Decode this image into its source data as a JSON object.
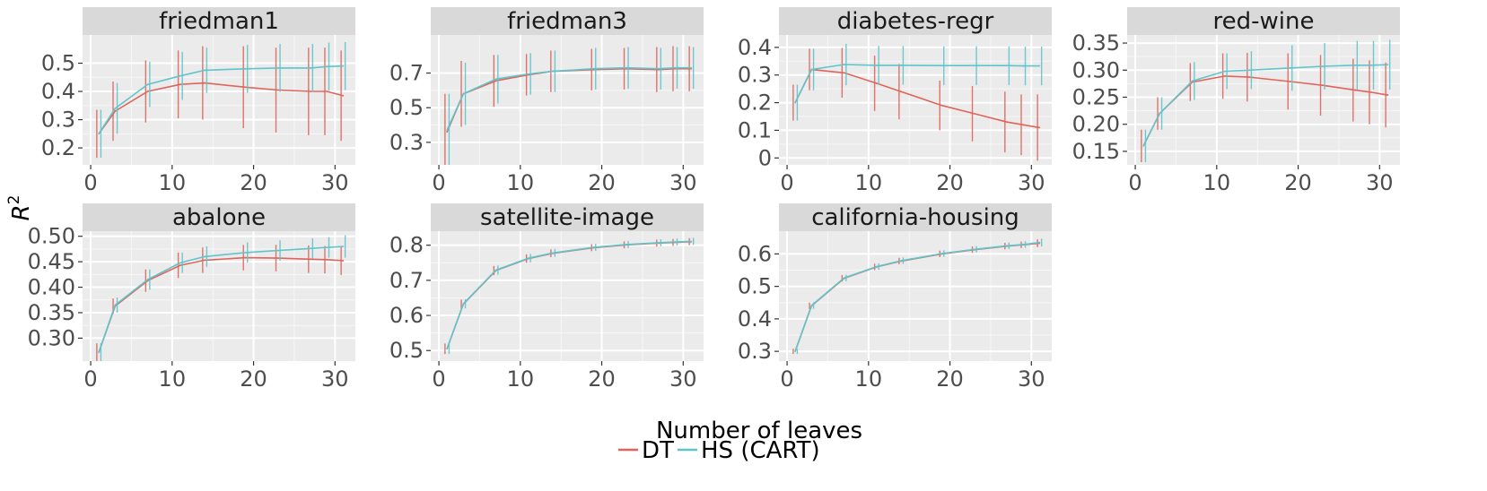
{
  "chart_data": {
    "type": "line",
    "xlabel": "Number of leaves",
    "ylabel": "R",
    "ylabel_superscript": "2",
    "xlim": [
      -1,
      32.5
    ],
    "x_ticks": [
      0,
      10,
      20,
      30
    ],
    "x": [
      1,
      3,
      7,
      11,
      14,
      19,
      23,
      27,
      29,
      31
    ],
    "grid": true,
    "legend_position": "bottom",
    "legend": [
      {
        "name": "DT",
        "color": "#E0645A"
      },
      {
        "name": "HS (CART)",
        "color": "#5FC4CB"
      }
    ],
    "panels": [
      {
        "title": "friedman1",
        "ylim": [
          0.14,
          0.6
        ],
        "y_ticks": [
          0.2,
          0.3,
          0.4,
          0.5
        ],
        "y_tick_labels": [
          "0.2",
          "0.3",
          "0.4",
          "0.5"
        ],
        "series": [
          {
            "name": "DT",
            "values": [
              0.25,
              0.33,
              0.4,
              0.425,
              0.43,
              0.415,
              0.405,
              0.4,
              0.4,
              0.385
            ],
            "err": [
              0.085,
              0.105,
              0.11,
              0.12,
              0.13,
              0.145,
              0.15,
              0.155,
              0.155,
              0.16
            ]
          },
          {
            "name": "HS (CART)",
            "values": [
              0.25,
              0.34,
              0.425,
              0.455,
              0.475,
              0.48,
              0.483,
              0.483,
              0.488,
              0.49
            ],
            "err": [
              0.085,
              0.09,
              0.08,
              0.085,
              0.08,
              0.085,
              0.085,
              0.085,
              0.085,
              0.085
            ]
          }
        ]
      },
      {
        "title": "friedman3",
        "ylim": [
          0.17,
          0.92
        ],
        "y_ticks": [
          0.3,
          0.5,
          0.7
        ],
        "y_tick_labels": [
          "0.3",
          "0.5",
          "0.7"
        ],
        "series": [
          {
            "name": "DT",
            "values": [
              0.36,
              0.58,
              0.655,
              0.69,
              0.71,
              0.72,
              0.725,
              0.72,
              0.725,
              0.725
            ],
            "err": [
              0.22,
              0.19,
              0.15,
              0.12,
              0.12,
              0.12,
              0.12,
              0.13,
              0.13,
              0.13
            ]
          },
          {
            "name": "HS (CART)",
            "values": [
              0.37,
              0.58,
              0.665,
              0.695,
              0.71,
              0.725,
              0.73,
              0.725,
              0.73,
              0.73
            ],
            "err": [
              0.21,
              0.18,
              0.14,
              0.12,
              0.12,
              0.12,
              0.12,
              0.12,
              0.12,
              0.12
            ]
          }
        ]
      },
      {
        "title": "diabetes-regr",
        "ylim": [
          -0.025,
          0.445
        ],
        "y_ticks": [
          0,
          0.1,
          0.2,
          0.3,
          0.4
        ],
        "y_tick_labels": [
          "0",
          "0.1",
          "0.2",
          "0.3",
          "0.4"
        ],
        "series": [
          {
            "name": "DT",
            "values": [
              0.2,
              0.32,
              0.308,
              0.27,
              0.24,
              0.19,
              0.16,
              0.13,
              0.12,
              0.11
            ],
            "err": [
              0.065,
              0.075,
              0.09,
              0.1,
              0.1,
              0.09,
              0.1,
              0.11,
              0.11,
              0.12
            ]
          },
          {
            "name": "HS (CART)",
            "values": [
              0.2,
              0.32,
              0.338,
              0.335,
              0.335,
              0.334,
              0.334,
              0.334,
              0.333,
              0.333
            ],
            "err": [
              0.065,
              0.075,
              0.075,
              0.07,
              0.07,
              0.07,
              0.07,
              0.07,
              0.07,
              0.07
            ]
          }
        ]
      },
      {
        "title": "red-wine",
        "ylim": [
          0.125,
          0.365
        ],
        "y_ticks": [
          0.15,
          0.2,
          0.25,
          0.3,
          0.35
        ],
        "y_tick_labels": [
          "0.15",
          "0.20",
          "0.25",
          "0.30",
          "0.35"
        ],
        "series": [
          {
            "name": "DT",
            "values": [
              0.16,
              0.22,
              0.278,
              0.289,
              0.287,
              0.279,
              0.272,
              0.263,
              0.259,
              0.254
            ],
            "err": [
              0.03,
              0.03,
              0.035,
              0.042,
              0.045,
              0.052,
              0.056,
              0.058,
              0.059,
              0.06
            ]
          },
          {
            "name": "HS (CART)",
            "values": [
              0.16,
              0.22,
              0.28,
              0.298,
              0.3,
              0.304,
              0.307,
              0.309,
              0.309,
              0.31
            ],
            "err": [
              0.03,
              0.03,
              0.035,
              0.033,
              0.035,
              0.042,
              0.043,
              0.045,
              0.045,
              0.046
            ]
          }
        ]
      },
      {
        "title": "abalone",
        "ylim": [
          0.255,
          0.51
        ],
        "y_ticks": [
          0.3,
          0.35,
          0.4,
          0.45,
          0.5
        ],
        "y_tick_labels": [
          "0.30",
          "0.35",
          "0.40",
          "0.45",
          "0.50"
        ],
        "series": [
          {
            "name": "DT",
            "values": [
              0.272,
              0.363,
              0.413,
              0.443,
              0.453,
              0.458,
              0.457,
              0.455,
              0.454,
              0.452
            ],
            "err": [
              0.018,
              0.015,
              0.022,
              0.025,
              0.025,
              0.025,
              0.026,
              0.027,
              0.027,
              0.028
            ]
          },
          {
            "name": "HS (CART)",
            "values": [
              0.272,
              0.365,
              0.415,
              0.448,
              0.46,
              0.468,
              0.472,
              0.476,
              0.478,
              0.48
            ],
            "err": [
              0.018,
              0.015,
              0.02,
              0.02,
              0.02,
              0.02,
              0.02,
              0.02,
              0.02,
              0.022
            ]
          }
        ]
      },
      {
        "title": "satellite-image",
        "ylim": [
          0.47,
          0.84
        ],
        "y_ticks": [
          0.5,
          0.6,
          0.7,
          0.8
        ],
        "y_tick_labels": [
          "0.5",
          "0.6",
          "0.7",
          "0.8"
        ],
        "series": [
          {
            "name": "DT",
            "values": [
              0.505,
              0.632,
              0.728,
              0.762,
              0.777,
              0.793,
              0.801,
              0.806,
              0.808,
              0.81
            ],
            "err": [
              0.015,
              0.013,
              0.013,
              0.012,
              0.011,
              0.01,
              0.01,
              0.01,
              0.01,
              0.01
            ]
          },
          {
            "name": "HS (CART)",
            "values": [
              0.505,
              0.633,
              0.729,
              0.763,
              0.778,
              0.794,
              0.802,
              0.807,
              0.809,
              0.811
            ],
            "err": [
              0.015,
              0.013,
              0.013,
              0.012,
              0.011,
              0.01,
              0.01,
              0.01,
              0.01,
              0.01
            ]
          }
        ]
      },
      {
        "title": "california-housing",
        "ylim": [
          0.27,
          0.67
        ],
        "y_ticks": [
          0.3,
          0.4,
          0.5,
          0.6
        ],
        "y_tick_labels": [
          "0.3",
          "0.4",
          "0.5",
          "0.6"
        ],
        "series": [
          {
            "name": "DT",
            "values": [
              0.3,
              0.44,
              0.525,
              0.56,
              0.578,
              0.6,
              0.613,
              0.624,
              0.628,
              0.633
            ],
            "err": [
              0.008,
              0.01,
              0.01,
              0.01,
              0.01,
              0.01,
              0.01,
              0.01,
              0.01,
              0.012
            ]
          },
          {
            "name": "HS (CART)",
            "values": [
              0.3,
              0.441,
              0.526,
              0.561,
              0.579,
              0.601,
              0.614,
              0.625,
              0.629,
              0.635
            ],
            "err": [
              0.008,
              0.01,
              0.01,
              0.01,
              0.01,
              0.01,
              0.01,
              0.01,
              0.01,
              0.012
            ]
          }
        ]
      }
    ]
  }
}
